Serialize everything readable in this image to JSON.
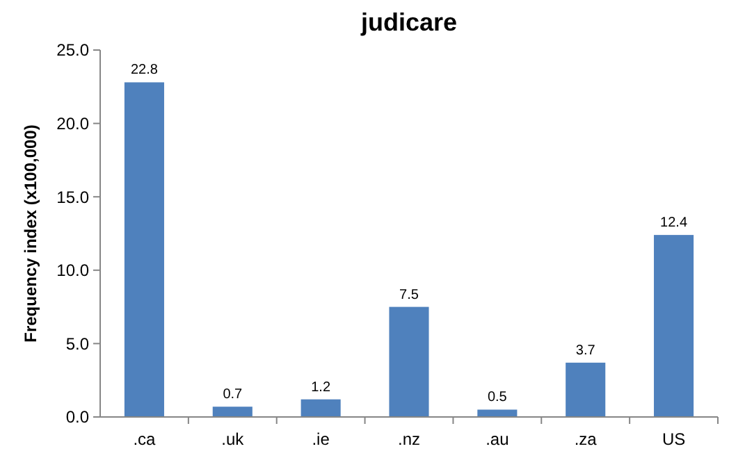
{
  "chart_data": {
    "type": "bar",
    "title": "judicare",
    "ylabel": "Frequency index (x100,000)",
    "categories": [
      ".ca",
      ".uk",
      ".ie",
      ".nz",
      ".au",
      ".za",
      "US"
    ],
    "values": [
      22.8,
      0.7,
      1.2,
      7.5,
      0.5,
      3.7,
      12.4
    ],
    "color": "#4f81bd",
    "ylim": [
      0,
      25
    ],
    "yticks": [
      {
        "value": 0,
        "label": "0.0"
      },
      {
        "value": 5,
        "label": "5.0"
      },
      {
        "value": 10,
        "label": "10.0"
      },
      {
        "value": 15,
        "label": "15.0"
      },
      {
        "value": 20,
        "label": "20.0"
      },
      {
        "value": 25,
        "label": "25.0"
      }
    ],
    "data_labels": true,
    "grid": false
  }
}
